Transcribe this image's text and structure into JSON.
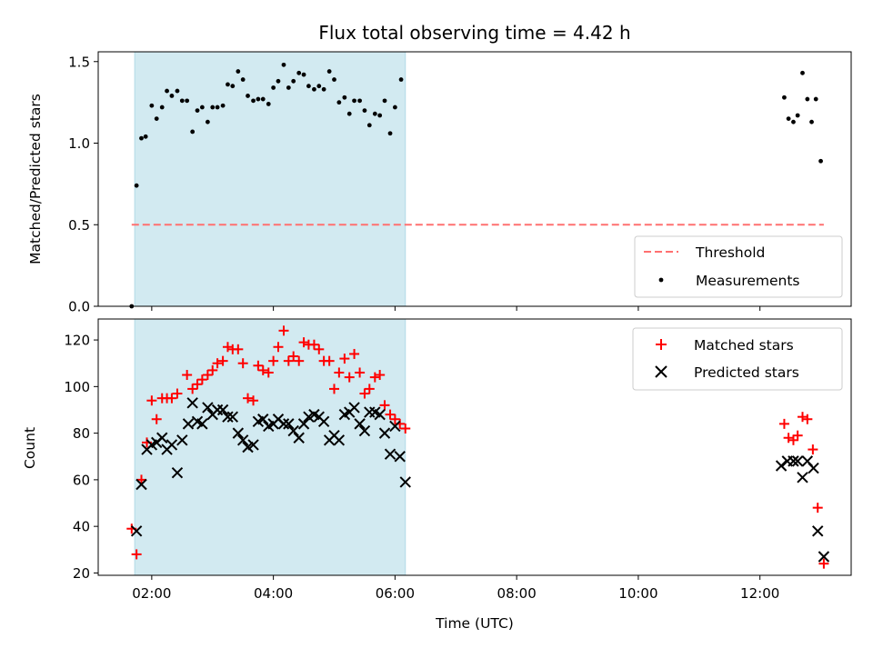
{
  "chart_data": {
    "title": "Flux total observing time = 4.42 h",
    "xlabel": "Time (UTC)",
    "x_unit": "hours UTC",
    "xlim": [
      1.12,
      13.5
    ],
    "x_ticks": [
      {
        "value": 2,
        "label": "02:00"
      },
      {
        "value": 4,
        "label": "04:00"
      },
      {
        "value": 6,
        "label": "06:00"
      },
      {
        "value": 8,
        "label": "08:00"
      },
      {
        "value": 10,
        "label": "10:00"
      },
      {
        "value": 12,
        "label": "12:00"
      }
    ],
    "shaded_span": {
      "x0": 1.72,
      "x1": 6.17,
      "color": "#add8e6"
    },
    "panels": [
      {
        "id": "ratio",
        "type": "scatter",
        "ylabel": "Matched/Predicted stars",
        "ylim": [
          0,
          1.56
        ],
        "y_ticks": [
          0,
          0.5,
          1.0,
          1.5
        ],
        "y_tick_labels": [
          "0.0",
          "0.5",
          "1.0",
          "1.5"
        ],
        "legend_position": "lower-right",
        "threshold": {
          "name": "Threshold",
          "value": 0.5,
          "x_range": [
            1.67,
            13.05
          ],
          "color": "#ff7070",
          "style": "dashed"
        },
        "series": [
          {
            "name": "Measurements",
            "color": "#000000",
            "marker": "dot",
            "points": [
              [
                1.67,
                0.0
              ],
              [
                1.75,
                0.74
              ],
              [
                1.83,
                1.03
              ],
              [
                1.9,
                1.04
              ],
              [
                2.0,
                1.23
              ],
              [
                2.08,
                1.15
              ],
              [
                2.17,
                1.22
              ],
              [
                2.25,
                1.32
              ],
              [
                2.33,
                1.29
              ],
              [
                2.42,
                1.32
              ],
              [
                2.5,
                1.26
              ],
              [
                2.58,
                1.26
              ],
              [
                2.67,
                1.07
              ],
              [
                2.75,
                1.2
              ],
              [
                2.83,
                1.22
              ],
              [
                2.92,
                1.13
              ],
              [
                3.0,
                1.22
              ],
              [
                3.08,
                1.22
              ],
              [
                3.17,
                1.23
              ],
              [
                3.25,
                1.36
              ],
              [
                3.33,
                1.35
              ],
              [
                3.42,
                1.44
              ],
              [
                3.5,
                1.39
              ],
              [
                3.58,
                1.29
              ],
              [
                3.67,
                1.26
              ],
              [
                3.75,
                1.27
              ],
              [
                3.83,
                1.27
              ],
              [
                3.92,
                1.24
              ],
              [
                4.0,
                1.34
              ],
              [
                4.08,
                1.38
              ],
              [
                4.17,
                1.48
              ],
              [
                4.25,
                1.34
              ],
              [
                4.33,
                1.38
              ],
              [
                4.42,
                1.43
              ],
              [
                4.5,
                1.42
              ],
              [
                4.58,
                1.35
              ],
              [
                4.67,
                1.33
              ],
              [
                4.75,
                1.35
              ],
              [
                4.83,
                1.33
              ],
              [
                4.92,
                1.44
              ],
              [
                5.0,
                1.39
              ],
              [
                5.08,
                1.25
              ],
              [
                5.17,
                1.28
              ],
              [
                5.25,
                1.18
              ],
              [
                5.33,
                1.26
              ],
              [
                5.42,
                1.26
              ],
              [
                5.5,
                1.2
              ],
              [
                5.58,
                1.11
              ],
              [
                5.67,
                1.18
              ],
              [
                5.75,
                1.17
              ],
              [
                5.83,
                1.26
              ],
              [
                5.92,
                1.06
              ],
              [
                6.0,
                1.22
              ],
              [
                6.1,
                1.39
              ],
              [
                12.4,
                1.28
              ],
              [
                12.47,
                1.15
              ],
              [
                12.55,
                1.13
              ],
              [
                12.62,
                1.17
              ],
              [
                12.7,
                1.43
              ],
              [
                12.78,
                1.27
              ],
              [
                12.85,
                1.13
              ],
              [
                12.92,
                1.27
              ],
              [
                13.0,
                0.89
              ]
            ]
          }
        ]
      },
      {
        "id": "counts",
        "type": "scatter",
        "ylabel": "Count",
        "ylim": [
          19,
          129
        ],
        "y_ticks": [
          20,
          40,
          60,
          80,
          100,
          120
        ],
        "y_tick_labels": [
          "20",
          "40",
          "60",
          "80",
          "100",
          "120"
        ],
        "legend_position": "top-right",
        "series": [
          {
            "name": "Matched stars",
            "color": "#ff0000",
            "marker": "plus",
            "points": [
              [
                1.67,
                39
              ],
              [
                1.75,
                28
              ],
              [
                1.83,
                60
              ],
              [
                1.92,
                76
              ],
              [
                2.0,
                94
              ],
              [
                2.08,
                86
              ],
              [
                2.17,
                95
              ],
              [
                2.25,
                95
              ],
              [
                2.33,
                95
              ],
              [
                2.42,
                97
              ],
              [
                2.58,
                105
              ],
              [
                2.67,
                99
              ],
              [
                2.75,
                101
              ],
              [
                2.83,
                103
              ],
              [
                2.92,
                105
              ],
              [
                3.0,
                107
              ],
              [
                3.08,
                110
              ],
              [
                3.17,
                111
              ],
              [
                3.25,
                117
              ],
              [
                3.33,
                116
              ],
              [
                3.42,
                116
              ],
              [
                3.5,
                110
              ],
              [
                3.58,
                95
              ],
              [
                3.67,
                94
              ],
              [
                3.75,
                109
              ],
              [
                3.83,
                107
              ],
              [
                3.92,
                106
              ],
              [
                4.0,
                111
              ],
              [
                4.08,
                117
              ],
              [
                4.17,
                124
              ],
              [
                4.25,
                111
              ],
              [
                4.33,
                113
              ],
              [
                4.42,
                111
              ],
              [
                4.5,
                119
              ],
              [
                4.58,
                118
              ],
              [
                4.67,
                118
              ],
              [
                4.75,
                116
              ],
              [
                4.83,
                111
              ],
              [
                4.92,
                111
              ],
              [
                5.0,
                99
              ],
              [
                5.08,
                106
              ],
              [
                5.17,
                112
              ],
              [
                5.25,
                104
              ],
              [
                5.33,
                114
              ],
              [
                5.42,
                106
              ],
              [
                5.5,
                97
              ],
              [
                5.58,
                99
              ],
              [
                5.67,
                104
              ],
              [
                5.75,
                105
              ],
              [
                5.83,
                92
              ],
              [
                5.92,
                88
              ],
              [
                6.0,
                86
              ],
              [
                6.08,
                84
              ],
              [
                6.17,
                82
              ],
              [
                12.4,
                84
              ],
              [
                12.47,
                78
              ],
              [
                12.55,
                77
              ],
              [
                12.62,
                79
              ],
              [
                12.7,
                87
              ],
              [
                12.78,
                86
              ],
              [
                12.87,
                73
              ],
              [
                12.95,
                48
              ],
              [
                13.05,
                24
              ]
            ]
          },
          {
            "name": "Predicted stars",
            "color": "#000000",
            "marker": "x",
            "points": [
              [
                1.75,
                38
              ],
              [
                1.83,
                58
              ],
              [
                1.92,
                73
              ],
              [
                2.0,
                75
              ],
              [
                2.08,
                76
              ],
              [
                2.17,
                78
              ],
              [
                2.25,
                73
              ],
              [
                2.33,
                75
              ],
              [
                2.42,
                63
              ],
              [
                2.5,
                77
              ],
              [
                2.6,
                84
              ],
              [
                2.67,
                93
              ],
              [
                2.75,
                85
              ],
              [
                2.83,
                84
              ],
              [
                2.92,
                91
              ],
              [
                3.0,
                88
              ],
              [
                3.08,
                90
              ],
              [
                3.17,
                90
              ],
              [
                3.25,
                87
              ],
              [
                3.33,
                87
              ],
              [
                3.42,
                80
              ],
              [
                3.5,
                77
              ],
              [
                3.58,
                74
              ],
              [
                3.67,
                75
              ],
              [
                3.75,
                85
              ],
              [
                3.83,
                86
              ],
              [
                3.92,
                83
              ],
              [
                4.0,
                84
              ],
              [
                4.08,
                86
              ],
              [
                4.17,
                84
              ],
              [
                4.25,
                84
              ],
              [
                4.33,
                81
              ],
              [
                4.42,
                78
              ],
              [
                4.5,
                84
              ],
              [
                4.58,
                87
              ],
              [
                4.67,
                88
              ],
              [
                4.75,
                87
              ],
              [
                4.83,
                85
              ],
              [
                4.92,
                77
              ],
              [
                5.0,
                79
              ],
              [
                5.08,
                77
              ],
              [
                5.17,
                88
              ],
              [
                5.25,
                89
              ],
              [
                5.33,
                91
              ],
              [
                5.42,
                84
              ],
              [
                5.5,
                81
              ],
              [
                5.58,
                89
              ],
              [
                5.67,
                89
              ],
              [
                5.75,
                88
              ],
              [
                5.83,
                80
              ],
              [
                5.92,
                71
              ],
              [
                6.0,
                83
              ],
              [
                6.08,
                70
              ],
              [
                6.17,
                59
              ],
              [
                12.35,
                66
              ],
              [
                12.45,
                68
              ],
              [
                12.55,
                68
              ],
              [
                12.62,
                68
              ],
              [
                12.7,
                61
              ],
              [
                12.78,
                68
              ],
              [
                12.88,
                65
              ],
              [
                12.95,
                38
              ],
              [
                13.05,
                27
              ]
            ]
          }
        ]
      }
    ]
  }
}
